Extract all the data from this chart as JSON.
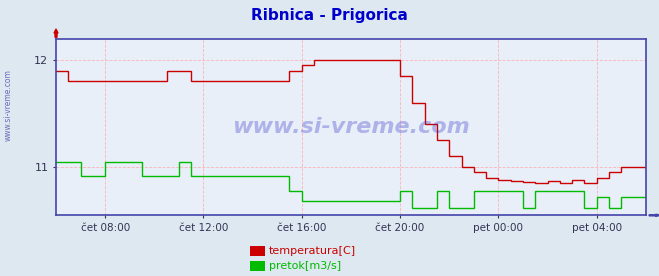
{
  "title": "Ribnica - Prigorica",
  "title_color": "#0000cc",
  "bg_color": "#dde8f0",
  "plot_bg_color": "#e8eff8",
  "grid_color": "#ffaaaa",
  "grid_color_v": "#ddaaaa",
  "axis_color": "#4444aa",
  "watermark": "www.si-vreme.com",
  "watermark_color": "#3333cc",
  "yticks": [
    11,
    12
  ],
  "ylim": [
    10.55,
    12.2
  ],
  "xlim": [
    0,
    24
  ],
  "xtick_hours": [
    2,
    6,
    10,
    14,
    18,
    22
  ],
  "xtick_labels": [
    "čet 08:00",
    "čet 12:00",
    "čet 16:00",
    "čet 20:00",
    "pet 00:00",
    "pet 04:00"
  ],
  "legend_items": [
    {
      "label": "temperatura[C]",
      "color": "#cc0000"
    },
    {
      "label": "pretok[m3/s]",
      "color": "#00bb00"
    }
  ],
  "temp_color": "#cc0000",
  "flow_color": "#00bb00",
  "temp_times": [
    0,
    0.5,
    0.5,
    4.5,
    4.5,
    5.5,
    5.5,
    9.5,
    9.5,
    10,
    10,
    10.5,
    10.5,
    14,
    14,
    14.5,
    14.5,
    15,
    15,
    15.5,
    15.5,
    16,
    16,
    16.5,
    16.5,
    17,
    17,
    17.5,
    17.5,
    18,
    18,
    18.5,
    18.5,
    19,
    19,
    19.5,
    19.5,
    20,
    20,
    20.5,
    20.5,
    21,
    21,
    21.5,
    21.5,
    22,
    22,
    22.5,
    22.5,
    23,
    23,
    24
  ],
  "temp_vals": [
    11.9,
    11.9,
    11.8,
    11.8,
    11.9,
    11.9,
    11.8,
    11.8,
    11.9,
    11.9,
    11.95,
    11.95,
    12.0,
    12.0,
    11.85,
    11.85,
    11.6,
    11.6,
    11.4,
    11.4,
    11.25,
    11.25,
    11.1,
    11.1,
    11.0,
    11.0,
    10.95,
    10.95,
    10.9,
    10.9,
    10.88,
    10.88,
    10.87,
    10.87,
    10.86,
    10.86,
    10.85,
    10.85,
    10.87,
    10.87,
    10.85,
    10.85,
    10.88,
    10.88,
    10.85,
    10.85,
    10.9,
    10.9,
    10.95,
    10.95,
    11.0,
    11.0
  ],
  "flow_times": [
    0,
    1,
    1,
    2,
    2,
    3.5,
    3.5,
    5,
    5,
    5.5,
    5.5,
    9.5,
    9.5,
    10,
    10,
    14,
    14,
    14.5,
    14.5,
    15.5,
    15.5,
    16,
    16,
    17,
    17,
    19,
    19,
    19.5,
    19.5,
    21.5,
    21.5,
    22,
    22,
    22.5,
    22.5,
    23,
    23,
    24
  ],
  "flow_vals": [
    11.05,
    11.05,
    10.92,
    10.92,
    11.05,
    11.05,
    10.92,
    10.92,
    11.05,
    11.05,
    10.92,
    10.92,
    10.78,
    10.78,
    10.68,
    10.68,
    10.78,
    10.78,
    10.62,
    10.62,
    10.78,
    10.78,
    10.62,
    10.62,
    10.78,
    10.78,
    10.62,
    10.62,
    10.78,
    10.78,
    10.62,
    10.62,
    10.72,
    10.72,
    10.62,
    10.62,
    10.72,
    10.72
  ]
}
